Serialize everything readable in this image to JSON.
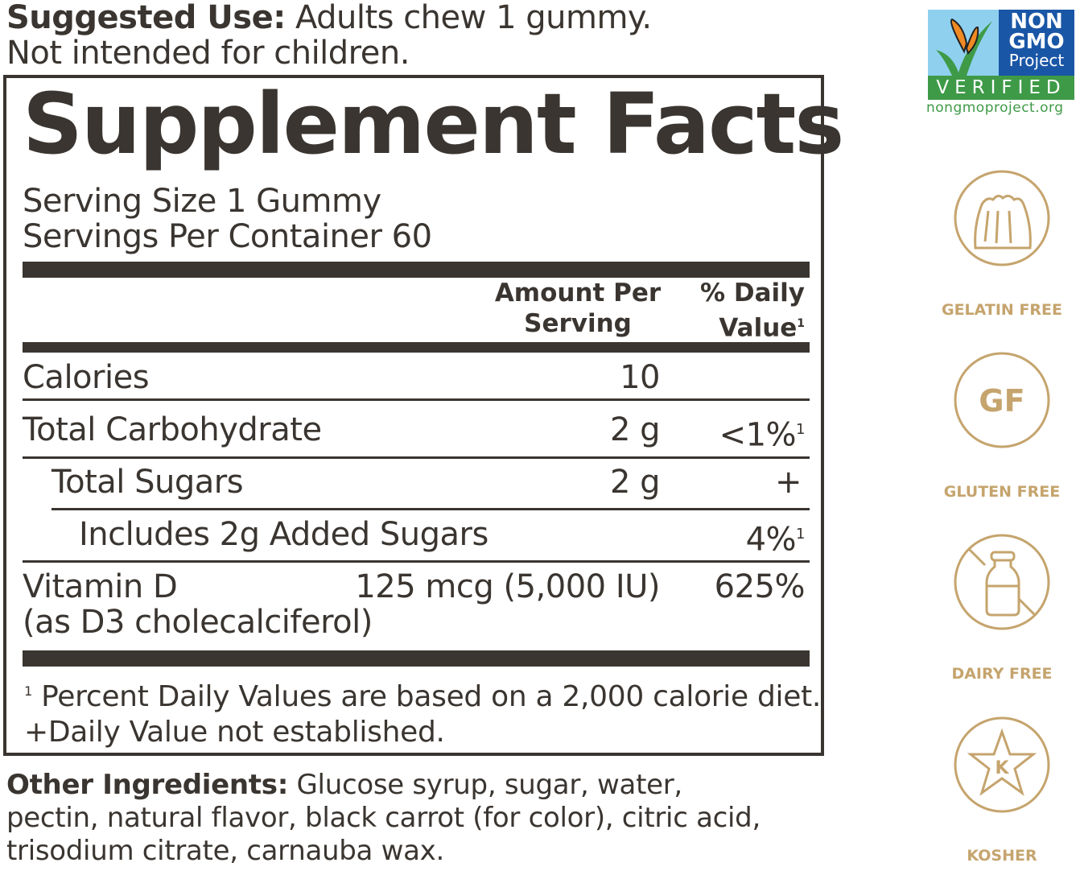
{
  "suggested_use": {
    "label": "Suggested Use:",
    "line1": "Adults chew 1 gummy.",
    "line2": "Not intended for children."
  },
  "panel": {
    "title": "Supplement Facts",
    "serving_size": "Serving Size 1 Gummy",
    "servings_per_container": "Servings Per Container 60",
    "header": {
      "amount_line1": "Amount Per",
      "amount_line2": "Serving",
      "dv_line1": "% Daily",
      "dv_line2": "Value",
      "dv_footnote_mark": "1"
    },
    "rows": [
      {
        "name": "Calories",
        "amount": "10",
        "dv": "",
        "mark": ""
      },
      {
        "name": "Total Carbohydrate",
        "amount": "2 g",
        "dv": "<1%",
        "mark": "1"
      },
      {
        "name": "Total Sugars",
        "amount": "2 g",
        "dv": "+",
        "mark": ""
      },
      {
        "name": "Includes 2g Added Sugars",
        "amount": "",
        "dv": "4%",
        "mark": "1"
      },
      {
        "name": "Vitamin D",
        "sub": "(as D3 cholecalciferol)",
        "amount": "125 mcg (5,000 IU)",
        "dv": "625%",
        "mark": ""
      }
    ],
    "footnote_mark": "1",
    "footnote1": "Percent Daily Values are based on a 2,000 calorie diet.",
    "footnote2": "+Daily Value not established."
  },
  "other_ingredients": {
    "label": "Other Ingredients:",
    "text1": "Glucose syrup, sugar, water,",
    "text2": "pectin, natural flavor, black carrot (for color), citric acid,",
    "text3": "trisodium citrate, carnauba wax."
  },
  "badges": {
    "non_gmo": {
      "line1": "NON",
      "line2": "GMO",
      "line3": "Project",
      "verified": "VERIFIED",
      "url": "nongmoproject.org"
    },
    "gelatin_free": "GELATIN FREE",
    "gluten_free_mark": "GF",
    "gluten_free": "GLUTEN FREE",
    "dairy_free": "DAIRY FREE",
    "kosher_mark": "K",
    "kosher": "KOSHER"
  },
  "colors": {
    "text": "#3a3530",
    "gold": "#c5a46d",
    "gmo_blue": "#1a56a6",
    "gmo_green": "#3e9a47",
    "gmo_sky": "#8fd0ef"
  }
}
